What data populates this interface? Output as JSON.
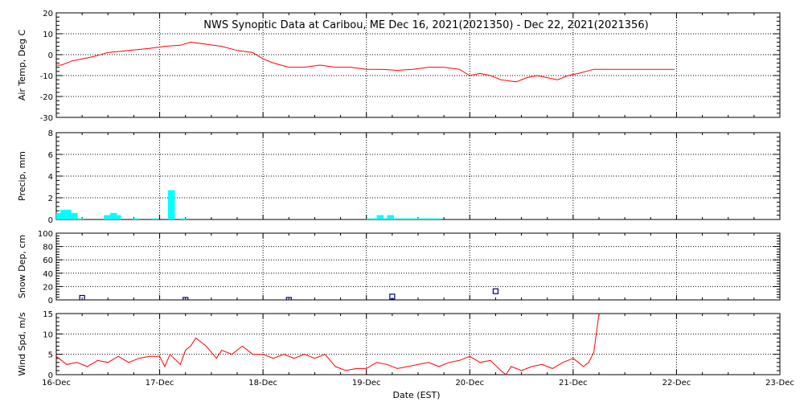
{
  "title": "NWS Synoptic Data at Caribou, ME    Dec 16, 2021(2021350) - Dec 22, 2021(2021356)",
  "xlabel": "Date (EST)",
  "chart_data": {
    "type": "line",
    "x_axis": {
      "categories": [
        "16-Dec",
        "17-Dec",
        "18-Dec",
        "19-Dec",
        "20-Dec",
        "21-Dec",
        "22-Dec",
        "23-Dec"
      ],
      "range_days": [
        0,
        7
      ]
    },
    "panels": [
      {
        "id": "temp",
        "type": "line",
        "ylabel": "Air Temp, Deg C",
        "ylim": [
          -30,
          20
        ],
        "yticks": [
          -30,
          -20,
          -10,
          0,
          10,
          20
        ],
        "color": "#ff0000",
        "x": [
          0,
          0.05,
          0.15,
          0.25,
          0.35,
          0.5,
          0.7,
          0.9,
          1.05,
          1.2,
          1.3,
          1.45,
          1.6,
          1.75,
          1.9,
          2.0,
          2.1,
          2.25,
          2.4,
          2.55,
          2.7,
          2.85,
          3.0,
          3.15,
          3.3,
          3.45,
          3.6,
          3.75,
          3.9,
          4.0,
          4.1,
          4.2,
          4.3,
          4.45,
          4.55,
          4.65,
          4.75,
          4.85,
          4.95,
          5.05,
          5.2,
          5.4,
          5.6,
          5.8,
          5.98
        ],
        "values": [
          -5,
          -5,
          -3,
          -2,
          -1,
          1,
          2,
          3,
          4,
          4.5,
          6,
          5,
          4,
          2,
          1,
          -2,
          -4,
          -6,
          -6,
          -5,
          -6,
          -6,
          -7,
          -7,
          -7.5,
          -7,
          -6,
          -6,
          -7,
          -10,
          -9,
          -10,
          -12,
          -13,
          -11,
          -10,
          -11,
          -12,
          -10,
          -9,
          -7,
          -7,
          -7,
          -7,
          -7
        ]
      },
      {
        "id": "precip",
        "type": "bar",
        "ylabel": "Precip, mm",
        "ylim": [
          0,
          8
        ],
        "yticks": [
          0,
          2,
          4,
          6,
          8
        ],
        "color": "#00ffff",
        "x": [
          0.0,
          0.04,
          0.08,
          0.14,
          0.2,
          0.46,
          0.52,
          0.56,
          0.74,
          0.92,
          1.08,
          1.2,
          2.0,
          3.0,
          3.04,
          3.1,
          3.16,
          3.2,
          3.26,
          3.32,
          3.38,
          3.44,
          3.5,
          3.56,
          3.6,
          3.66
        ],
        "values": [
          0.6,
          0.9,
          0.9,
          0.6,
          0.1,
          0.4,
          0.6,
          0.4,
          0.1,
          0.1,
          2.7,
          0.1,
          0.0,
          0.1,
          0.1,
          0.4,
          0.1,
          0.4,
          0.1,
          0.1,
          0.1,
          0.1,
          0.1,
          0.1,
          0.1,
          0.1
        ]
      },
      {
        "id": "snow",
        "type": "scatter",
        "ylabel": "Snow Dep, cm",
        "ylim": [
          0,
          100
        ],
        "yticks": [
          0,
          20,
          40,
          60,
          80,
          100
        ],
        "color": "#000080",
        "x": [
          0.25,
          1.25,
          2.25,
          3.25,
          4.25
        ],
        "values": [
          3,
          0,
          0,
          5,
          13
        ]
      },
      {
        "id": "wind",
        "type": "line",
        "ylabel": "Wind Spd, m/s",
        "ylim": [
          0,
          15
        ],
        "yticks": [
          0,
          5,
          10,
          15
        ],
        "color": "#ff0000",
        "x": [
          0,
          0.1,
          0.2,
          0.3,
          0.4,
          0.5,
          0.6,
          0.7,
          0.8,
          0.9,
          1.0,
          1.05,
          1.1,
          1.2,
          1.25,
          1.3,
          1.35,
          1.4,
          1.45,
          1.55,
          1.6,
          1.7,
          1.8,
          1.9,
          2.0,
          2.1,
          2.2,
          2.3,
          2.4,
          2.5,
          2.6,
          2.7,
          2.8,
          2.9,
          3.0,
          3.1,
          3.2,
          3.3,
          3.4,
          3.5,
          3.6,
          3.7,
          3.8,
          3.9,
          4.0,
          4.1,
          4.2,
          4.3,
          4.35,
          4.4,
          4.5,
          4.6,
          4.7,
          4.8,
          4.9,
          5.0,
          5.1,
          5.15,
          5.2,
          5.25
        ],
        "values": [
          4.5,
          2.5,
          3,
          2,
          3.5,
          3,
          4.5,
          3,
          4,
          4.5,
          4.5,
          2,
          5,
          2.5,
          6,
          7,
          9,
          8,
          7,
          4,
          6,
          5,
          7,
          5,
          5,
          4,
          5,
          4,
          5,
          4,
          5,
          2,
          1,
          1.5,
          1.5,
          3,
          2.5,
          1.5,
          2,
          2.5,
          3,
          2,
          3,
          3.5,
          4.5,
          3,
          3.5,
          1,
          0,
          2,
          1,
          2,
          2.5,
          1.5,
          3,
          4,
          2,
          3,
          5.5,
          15
        ]
      }
    ]
  }
}
